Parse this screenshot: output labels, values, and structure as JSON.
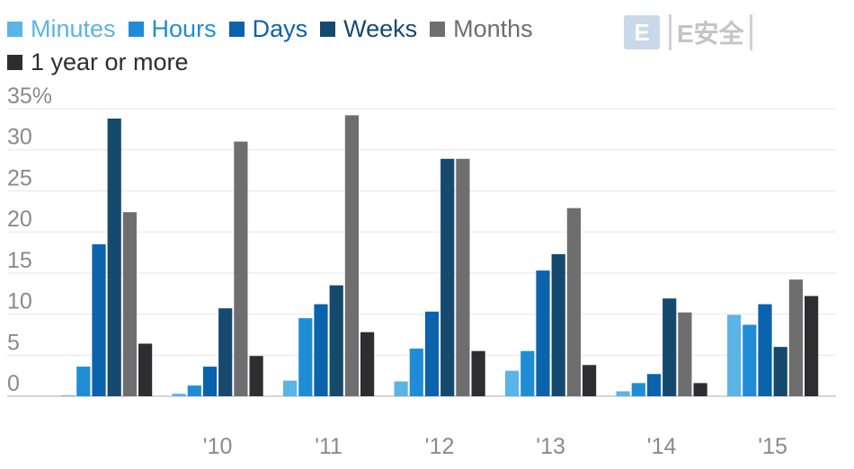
{
  "chart_data": {
    "type": "bar",
    "title": "",
    "xlabel": "",
    "ylabel": "",
    "categories": [
      "",
      "'10",
      "'11",
      "'12",
      "'13",
      "'14",
      "'15"
    ],
    "y_tick_labels": [
      "0",
      "5",
      "10",
      "15",
      "20",
      "25",
      "30",
      "35%"
    ],
    "ylim": [
      0,
      35
    ],
    "grid": true,
    "legend_position": "top-left",
    "series": [
      {
        "name": "Minutes",
        "color": "#5ab4e5",
        "values": [
          0.1,
          0.3,
          1.9,
          1.8,
          3.1,
          0.6,
          9.9
        ]
      },
      {
        "name": "Hours",
        "color": "#1f8dd6",
        "values": [
          3.6,
          1.3,
          9.5,
          5.8,
          5.5,
          1.6,
          8.7
        ]
      },
      {
        "name": "Days",
        "color": "#0b62ad",
        "values": [
          18.5,
          3.6,
          11.2,
          10.3,
          15.3,
          2.7,
          11.2
        ]
      },
      {
        "name": "Weeks",
        "color": "#154a6e",
        "values": [
          33.8,
          10.7,
          13.5,
          28.9,
          17.3,
          11.9,
          6.0
        ]
      },
      {
        "name": "Months",
        "color": "#6e6e6e",
        "values": [
          22.4,
          31.0,
          34.2,
          28.9,
          22.9,
          10.2,
          14.2
        ]
      },
      {
        "name": "1 year or more",
        "color": "#2e2e30",
        "values": [
          6.4,
          4.9,
          7.8,
          5.5,
          3.8,
          1.6,
          12.2
        ]
      }
    ]
  },
  "watermark": {
    "badge": "E",
    "text": "E安全"
  }
}
